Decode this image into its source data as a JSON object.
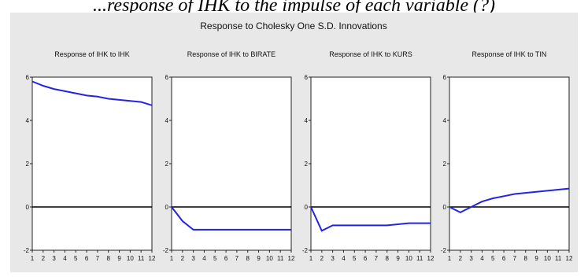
{
  "caption": "...response of IHK to the impulse of each variable (?)",
  "chart_data": {
    "type": "line",
    "title": "Response to Cholesky One S.D. Innovations",
    "colors": {
      "line": "#2323e6",
      "zero_line": "#000000",
      "plot_bg": "#ffffff",
      "figure_bg": "#e8e8e8"
    },
    "x": [
      1,
      2,
      3,
      4,
      5,
      6,
      7,
      8,
      9,
      10,
      11,
      12
    ],
    "xlim": [
      1,
      12
    ],
    "ylim": [
      -2,
      6
    ],
    "yticks": [
      -2,
      0,
      2,
      4,
      6
    ],
    "panels": [
      {
        "title": "Response of IHK to IHK",
        "series": [
          {
            "values": [
              5.8,
              5.6,
              5.45,
              5.35,
              5.25,
              5.15,
              5.1,
              5.0,
              4.95,
              4.9,
              4.85,
              4.7
            ]
          }
        ]
      },
      {
        "title": "Response of IHK to BIRATE",
        "series": [
          {
            "values": [
              0.0,
              -0.65,
              -1.05,
              -1.05,
              -1.05,
              -1.05,
              -1.05,
              -1.05,
              -1.05,
              -1.05,
              -1.05,
              -1.05
            ]
          }
        ]
      },
      {
        "title": "Response of IHK to KURS",
        "series": [
          {
            "values": [
              0.0,
              -1.1,
              -0.85,
              -0.85,
              -0.85,
              -0.85,
              -0.85,
              -0.85,
              -0.8,
              -0.75,
              -0.75,
              -0.75
            ]
          }
        ]
      },
      {
        "title": "Response of IHK to TIN",
        "series": [
          {
            "values": [
              0.0,
              -0.25,
              0.0,
              0.25,
              0.4,
              0.5,
              0.6,
              0.65,
              0.7,
              0.75,
              0.8,
              0.85
            ]
          }
        ]
      }
    ]
  }
}
